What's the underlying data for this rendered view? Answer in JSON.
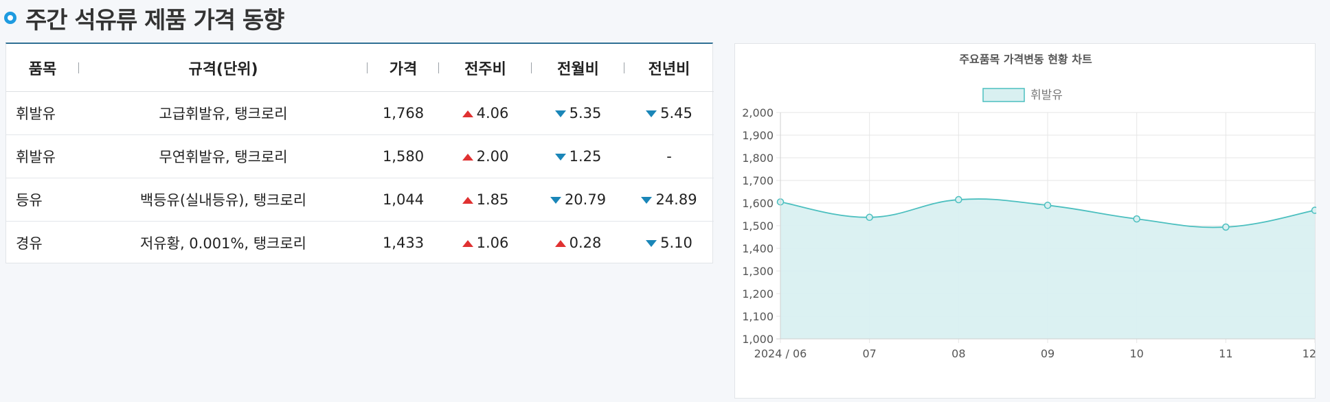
{
  "page": {
    "title": "주간 석유류 제품 가격 동향"
  },
  "table": {
    "headers": [
      "품목",
      "규격(단위)",
      "가격",
      "전주비",
      "전월비",
      "전년비"
    ],
    "rows": [
      {
        "item": "휘발유",
        "spec": "고급휘발유, 탱크로리",
        "price": "1,768",
        "week": {
          "dir": "up",
          "value": "4.06"
        },
        "month": {
          "dir": "down",
          "value": "5.35"
        },
        "year": {
          "dir": "down",
          "value": "5.45"
        }
      },
      {
        "item": "휘발유",
        "spec": "무연휘발유, 탱크로리",
        "price": "1,580",
        "week": {
          "dir": "up",
          "value": "2.00"
        },
        "month": {
          "dir": "down",
          "value": "1.25"
        },
        "year": {
          "dir": "none",
          "value": "-"
        }
      },
      {
        "item": "등유",
        "spec": "백등유(실내등유), 탱크로리",
        "price": "1,044",
        "week": {
          "dir": "up",
          "value": "1.85"
        },
        "month": {
          "dir": "down",
          "value": "20.79"
        },
        "year": {
          "dir": "down",
          "value": "24.89"
        }
      },
      {
        "item": "경유",
        "spec": "저유황, 0.001%, 탱크로리",
        "price": "1,433",
        "week": {
          "dir": "up",
          "value": "1.06"
        },
        "month": {
          "dir": "up",
          "value": "0.28"
        },
        "year": {
          "dir": "down",
          "value": "5.10"
        }
      }
    ],
    "colors": {
      "up": "#e03131",
      "down": "#1a86b8"
    }
  },
  "chart_data": {
    "type": "area",
    "title": "주요품목 가격변동 현황 차트",
    "x": [
      "2024 / 06",
      "07",
      "08",
      "09",
      "10",
      "11",
      "12"
    ],
    "series": [
      {
        "name": "휘발유",
        "values": [
          1605,
          1537,
          1615,
          1590,
          1530,
          1494,
          1568
        ]
      }
    ],
    "ylim": [
      1000,
      2000
    ],
    "yticks": [
      "2,000",
      "1,900",
      "1,800",
      "1,700",
      "1,600",
      "1,500",
      "1,400",
      "1,300",
      "1,200",
      "1,100",
      "1,000"
    ],
    "grid": true,
    "legend": "top-center",
    "colors": {
      "line": "#4bbfbf",
      "fill": "#d9f0f1",
      "point_fill": "#d9f0f1"
    }
  }
}
